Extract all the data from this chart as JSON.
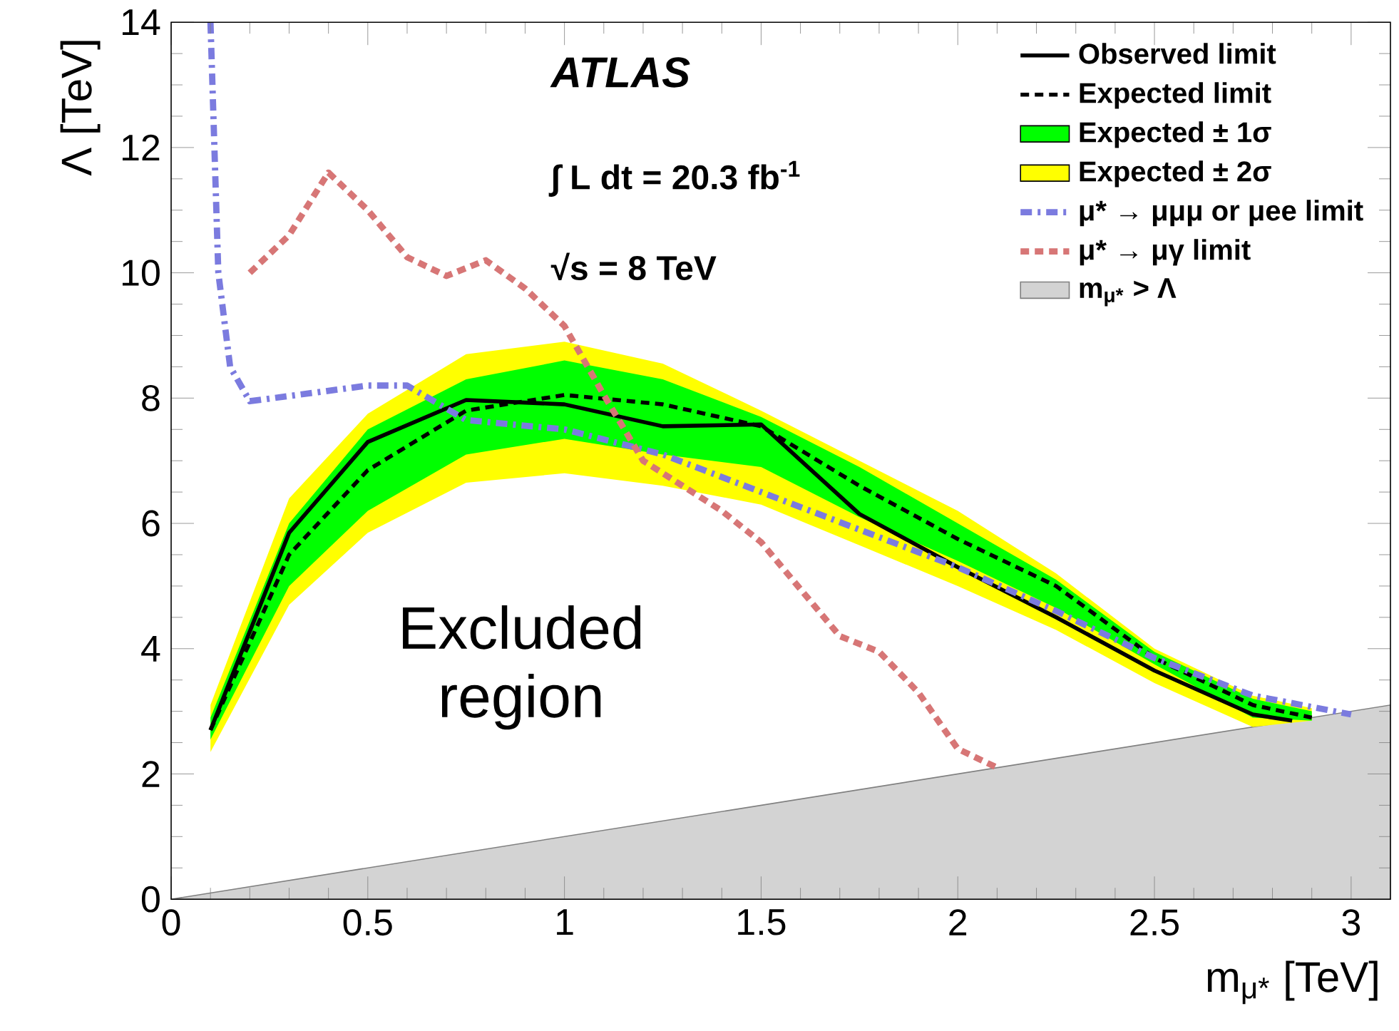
{
  "chart_data": {
    "type": "line",
    "xlabel": "m$_{μ*}$ [TeV]",
    "ylabel": "Λ [TeV]",
    "xlim": [
      0,
      3.1
    ],
    "ylim": [
      0,
      14
    ],
    "xticks": [
      0,
      0.5,
      1,
      1.5,
      2,
      2.5,
      3
    ],
    "yticks": [
      0,
      2,
      4,
      6,
      8,
      10,
      12,
      14
    ],
    "legend": "top right",
    "annotations": [
      "ATLAS",
      "∫ L dt = 20.3 fb$^{-1}$",
      "√s = 8 TeV",
      "Excluded region"
    ],
    "series": [
      {
        "name": "Observed limit",
        "color": "#000000",
        "line_style": "solid",
        "x": [
          0.1,
          0.3,
          0.5,
          0.75,
          1.0,
          1.25,
          1.5,
          1.75,
          2.0,
          2.25,
          2.5,
          2.75,
          2.85
        ],
        "values": [
          2.7,
          5.85,
          7.3,
          7.97,
          7.9,
          7.55,
          7.58,
          6.15,
          5.3,
          4.5,
          3.65,
          2.95,
          2.85
        ]
      },
      {
        "name": "Expected limit",
        "color": "#000000",
        "line_style": "dashed",
        "x": [
          0.1,
          0.3,
          0.5,
          0.75,
          1.0,
          1.25,
          1.5,
          1.75,
          2.0,
          2.25,
          2.5,
          2.75,
          2.9
        ],
        "values": [
          2.7,
          5.5,
          6.85,
          7.8,
          8.05,
          7.9,
          7.55,
          6.6,
          5.75,
          5.0,
          3.85,
          3.1,
          2.9
        ]
      },
      {
        "name": "Expected ± 1σ",
        "type": "area",
        "color": "#00ff00",
        "x": [
          0.1,
          0.3,
          0.5,
          0.75,
          1.0,
          1.25,
          1.5,
          1.75,
          2.0,
          2.25,
          2.5,
          2.75,
          2.9
        ],
        "values": [
          null,
          null,
          null,
          null,
          null,
          null,
          null,
          null,
          null,
          null,
          null,
          null,
          null
        ],
        "lower": [
          2.55,
          5.0,
          6.2,
          7.1,
          7.35,
          7.1,
          6.9,
          6.1,
          5.4,
          4.65,
          3.75,
          2.9,
          2.85
        ],
        "upper": [
          2.9,
          6.0,
          7.5,
          8.3,
          8.6,
          8.3,
          7.7,
          6.9,
          6.0,
          5.1,
          3.95,
          3.2,
          3.0
        ]
      },
      {
        "name": "Expected ± 2σ",
        "type": "area",
        "color": "#ffff00",
        "x": [
          0.1,
          0.3,
          0.5,
          0.75,
          1.0,
          1.25,
          1.5,
          1.75,
          2.0,
          2.25,
          2.5,
          2.75,
          2.9
        ],
        "values": [
          null,
          null,
          null,
          null,
          null,
          null,
          null,
          null,
          null,
          null,
          null,
          null,
          null
        ],
        "lower": [
          2.35,
          4.7,
          5.85,
          6.65,
          6.8,
          6.6,
          6.3,
          5.65,
          5.0,
          4.3,
          3.45,
          2.75,
          2.85
        ],
        "upper": [
          3.1,
          6.4,
          7.75,
          8.7,
          8.9,
          8.55,
          7.8,
          7.0,
          6.2,
          5.2,
          4.0,
          3.25,
          3.05
        ]
      },
      {
        "name": "μ* → μμμ or μee limit",
        "color": "#7b7bdf",
        "line_style": "dashdot",
        "x": [
          0.1,
          0.11,
          0.12,
          0.15,
          0.2,
          0.5,
          0.6,
          0.75,
          1.0,
          1.25,
          1.5,
          1.75,
          2.0,
          2.25,
          2.5,
          2.75,
          3.0
        ],
        "values": [
          14,
          12,
          10,
          8.5,
          7.95,
          8.2,
          8.2,
          7.65,
          7.5,
          7.1,
          6.5,
          5.9,
          5.3,
          4.6,
          3.85,
          3.25,
          2.95
        ]
      },
      {
        "name": "μ* → μγ limit",
        "color": "#d77676",
        "line_style": "dashed",
        "x": [
          0.2,
          0.3,
          0.4,
          0.5,
          0.6,
          0.7,
          0.8,
          0.9,
          1.0,
          1.1,
          1.2,
          1.4,
          1.5,
          1.6,
          1.7,
          1.8,
          1.9,
          2.0,
          2.1
        ],
        "values": [
          10,
          10.6,
          11.6,
          11.0,
          10.25,
          9.95,
          10.2,
          9.75,
          9.15,
          8.05,
          7.0,
          6.2,
          5.7,
          4.95,
          4.2,
          3.95,
          3.3,
          2.4,
          2.1
        ]
      },
      {
        "name": "m$_{μ*}$ > Λ",
        "type": "area",
        "color": "#d3d3d3",
        "x": [
          0,
          3.1
        ],
        "values": [
          0,
          3.1
        ]
      }
    ]
  }
}
